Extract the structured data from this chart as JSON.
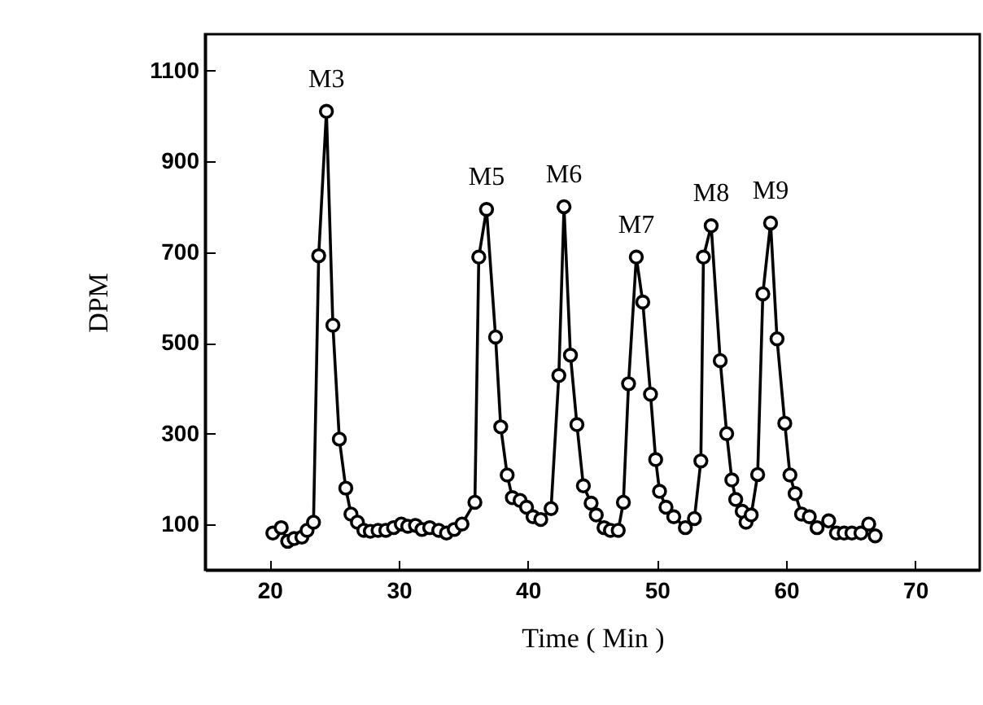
{
  "chart_data": {
    "type": "line",
    "xlabel": "Time ( Min )",
    "ylabel": "DPM",
    "xlim": [
      15,
      75
    ],
    "ylim": [
      0,
      1180
    ],
    "xticks": [
      20,
      30,
      40,
      50,
      60,
      70
    ],
    "yticks": [
      100,
      300,
      500,
      700,
      900,
      1100
    ],
    "grid": false,
    "marker": "circle",
    "line_style": "solid",
    "x": [
      20.25,
      20.9,
      21.4,
      21.9,
      22.5,
      22.9,
      23.4,
      23.8,
      24.4,
      24.9,
      25.4,
      25.9,
      26.3,
      26.8,
      27.3,
      27.8,
      28.4,
      29.0,
      29.6,
      30.2,
      30.7,
      31.3,
      31.8,
      32.4,
      33.1,
      33.7,
      34.3,
      34.9,
      35.9,
      36.2,
      36.8,
      37.5,
      37.9,
      38.4,
      38.8,
      39.4,
      39.9,
      40.4,
      41.0,
      41.8,
      42.4,
      42.8,
      43.3,
      43.8,
      44.3,
      44.9,
      45.3,
      45.9,
      46.4,
      47.0,
      47.4,
      47.8,
      48.4,
      48.9,
      49.5,
      49.9,
      50.2,
      50.7,
      51.3,
      52.2,
      52.9,
      53.4,
      53.6,
      54.2,
      54.9,
      55.4,
      55.8,
      56.1,
      56.6,
      56.9,
      57.3,
      57.8,
      58.2,
      58.8,
      59.3,
      59.9,
      60.3,
      60.7,
      61.2,
      61.8,
      62.4,
      63.3,
      63.9,
      64.5,
      65.1,
      65.8,
      66.4,
      66.9
    ],
    "series": [
      {
        "color": "#000000",
        "values": [
          81,
          93,
          63,
          69,
          72,
          87,
          105,
          692,
          1010,
          539,
          288,
          180,
          123,
          105,
          87,
          85,
          87,
          87,
          93,
          101,
          96,
          98,
          89,
          93,
          87,
          81,
          89,
          101,
          149,
          689,
          794,
          513,
          315,
          209,
          159,
          153,
          138,
          117,
          111,
          135,
          428,
          800,
          473,
          320,
          185,
          147,
          121,
          93,
          87,
          87,
          149,
          410,
          689,
          590,
          387,
          243,
          173,
          138,
          117,
          93,
          113,
          240,
          689,
          758,
          461,
          300,
          198,
          155,
          129,
          105,
          121,
          210,
          608,
          764,
          509,
          323,
          209,
          168,
          123,
          117,
          93,
          108,
          81,
          81,
          81,
          81,
          101,
          75
        ]
      }
    ],
    "annotations": [
      {
        "text": "M3",
        "x": 24.4,
        "y": 1010
      },
      {
        "text": "M5",
        "x": 36.8,
        "y": 794
      },
      {
        "text": "M6",
        "x": 42.8,
        "y": 800
      },
      {
        "text": "M7",
        "x": 48.4,
        "y": 689
      },
      {
        "text": "M8",
        "x": 54.2,
        "y": 758
      },
      {
        "text": "M9",
        "x": 58.8,
        "y": 764
      }
    ]
  }
}
